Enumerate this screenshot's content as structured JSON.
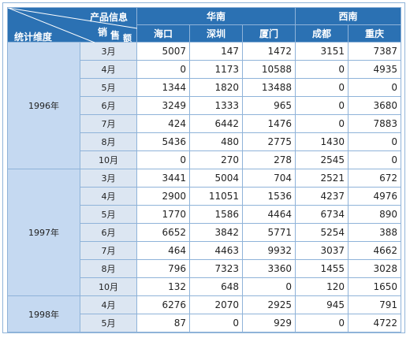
{
  "header": {
    "corner_top": "产品信息",
    "corner_mid_a": "销",
    "corner_mid_b": "售",
    "corner_mid_c": "额",
    "corner_bottom": "统计维度",
    "regions": [
      {
        "name": "华南",
        "cities": [
          "海口",
          "深圳",
          "厦门"
        ]
      },
      {
        "name": "西南",
        "cities": [
          "成都",
          "重庆"
        ]
      }
    ]
  },
  "groups": [
    {
      "year": "1996年",
      "rows": [
        {
          "month": "3月",
          "values": [
            "5007",
            "147",
            "1472",
            "3151",
            "7387"
          ]
        },
        {
          "month": "4月",
          "values": [
            "0",
            "1173",
            "10588",
            "0",
            "4935"
          ]
        },
        {
          "month": "5月",
          "values": [
            "1344",
            "1820",
            "13488",
            "0",
            "0"
          ]
        },
        {
          "month": "6月",
          "values": [
            "3249",
            "1333",
            "965",
            "0",
            "3680"
          ]
        },
        {
          "month": "7月",
          "values": [
            "424",
            "6442",
            "1476",
            "0",
            "7883"
          ]
        },
        {
          "month": "8月",
          "values": [
            "5436",
            "480",
            "2775",
            "1430",
            "0"
          ]
        },
        {
          "month": "10月",
          "values": [
            "0",
            "270",
            "278",
            "2545",
            "0"
          ]
        }
      ]
    },
    {
      "year": "1997年",
      "rows": [
        {
          "month": "3月",
          "values": [
            "3441",
            "5004",
            "704",
            "2521",
            "672"
          ]
        },
        {
          "month": "4月",
          "values": [
            "2900",
            "11051",
            "1536",
            "4237",
            "4976"
          ]
        },
        {
          "month": "5月",
          "values": [
            "1770",
            "1586",
            "4464",
            "6734",
            "890"
          ]
        },
        {
          "month": "6月",
          "values": [
            "6652",
            "3842",
            "5771",
            "5254",
            "388"
          ]
        },
        {
          "month": "7月",
          "values": [
            "464",
            "4463",
            "9932",
            "3037",
            "4662"
          ]
        },
        {
          "month": "8月",
          "values": [
            "796",
            "7323",
            "3360",
            "1455",
            "3028"
          ]
        },
        {
          "month": "10月",
          "values": [
            "132",
            "648",
            "0",
            "120",
            "1650"
          ]
        }
      ]
    },
    {
      "year": "1998年",
      "rows": [
        {
          "month": "4月",
          "values": [
            "6276",
            "2070",
            "2925",
            "945",
            "791"
          ]
        },
        {
          "month": "5月",
          "values": [
            "87",
            "0",
            "929",
            "0",
            "4722"
          ]
        }
      ]
    }
  ]
}
